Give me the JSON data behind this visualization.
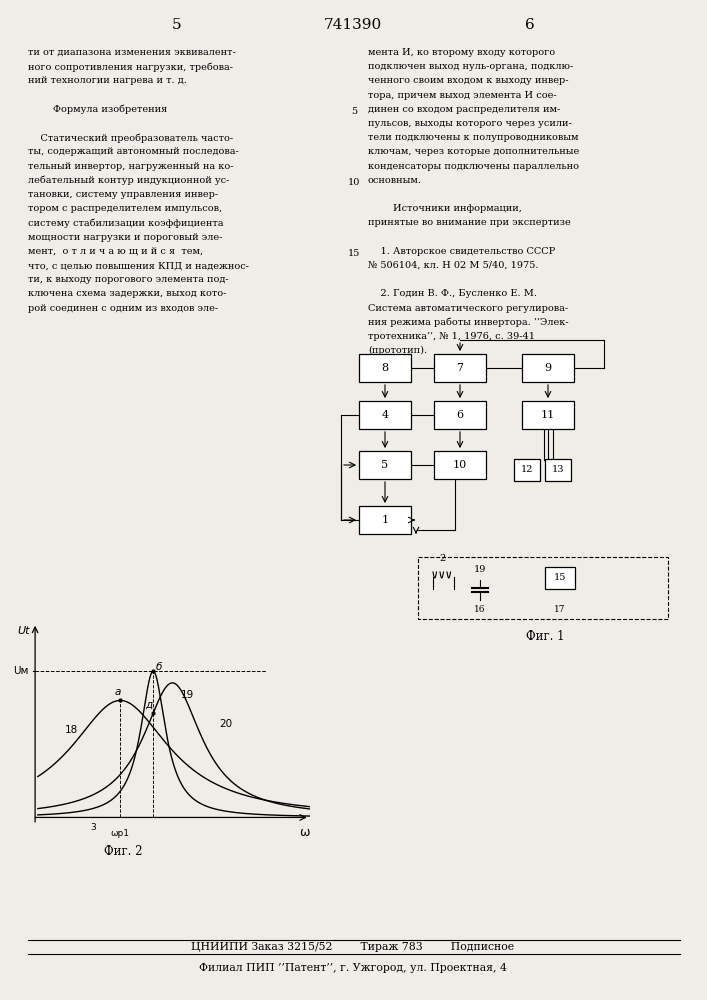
{
  "page_number_left": "5",
  "page_number_center": "741390",
  "page_number_right": "6",
  "col_left_text": [
    "ти от диапазона изменения эквивалент-",
    "ного сопротивления нагрузки, требова-",
    "ний технологии нагрева и т. д.",
    "",
    "        Формула изобретения",
    "",
    "    Статический преобразователь часто-",
    "ты, содержащий автономный последова-",
    "тельный инвертор, нагруженный на ко-",
    "лебательный контур индукционной ус-",
    "тановки, систему управления инвер-",
    "тором с распределителем импульсов,",
    "систему стабилизации коэффициента",
    "мощности нагрузки и пороговый эле-",
    "мент,  о т л и ч а ю щ и й с я  тем,",
    "что, с целью повышения КПД и надежнос-",
    "ти, к выходу порогового элемента под-",
    "ключена схема задержки, выход кото-",
    "рой соединен с одним из входов эле-"
  ],
  "col_right_text": [
    "мента И, ко второму входу которого",
    "подключен выход нуль-органа, подклю-",
    "ченного своим входом к выходу инвер-",
    "тора, причем выход элемента И сое-",
    "динен со входом распределителя им-",
    "пульсов, выходы которого через усили-",
    "тели подключены к полупроводниковым",
    "ключам, через которые дополнительные",
    "конденсаторы подключены параллельно",
    "основным.",
    "",
    "        Источники информации,",
    "принятые во внимание при экспертизе",
    "",
    "    1. Авторское свидетельство СССР",
    "№ 506104, кл. Н 02 М 5/40, 1975.",
    "",
    "    2. Годин В. Ф., Бусленко Е. М.",
    "Система автоматического регулирова-",
    "ния режима работы инвертора. ’’Элек-",
    "тротехника’’, № 1, 1976, с. 39-41",
    "(прототип)."
  ],
  "line_numbers": {
    "5": 4,
    "10": 9,
    "15": 14
  },
  "bottom_line1": "ЦНИИПИ Заказ 3215/52        Тираж 783        Подписное",
  "bottom_line2": "Филиал ПИП ’’Патент’’, г. Ужгород, ул. Проектная, 4",
  "fig1_label": "Фиг. 1",
  "fig2_label": "Фиг. 2",
  "background_color": "#f0ede8"
}
